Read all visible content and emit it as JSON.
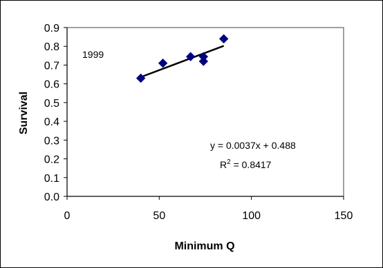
{
  "chart_data": {
    "type": "scatter",
    "xlabel": "Minimum Q",
    "ylabel": "Survival",
    "xlim": [
      0,
      150
    ],
    "ylim": [
      0.0,
      0.9
    ],
    "x_ticks": [
      "0",
      "50",
      "100",
      "150"
    ],
    "y_ticks": [
      "0.0",
      "0.1",
      "0.2",
      "0.3",
      "0.4",
      "0.5",
      "0.6",
      "0.7",
      "0.8",
      "0.9"
    ],
    "grid": false,
    "series": [
      {
        "marker": "diamond",
        "color": "#000080",
        "points": [
          {
            "x": 40,
            "y": 0.63
          },
          {
            "x": 52,
            "y": 0.71
          },
          {
            "x": 67,
            "y": 0.745
          },
          {
            "x": 74,
            "y": 0.745
          },
          {
            "x": 74,
            "y": 0.72
          },
          {
            "x": 85,
            "y": 0.84
          }
        ]
      }
    ],
    "trendline": {
      "color": "#000000",
      "slope": 0.0037,
      "intercept": 0.488,
      "x_range": [
        40,
        85
      ]
    },
    "annotations": {
      "year_label": "1999",
      "equation": "y = 0.0037x + 0.488",
      "r_squared_prefix": "R",
      "r_squared_exp": "2",
      "r_squared_value": " = 0.8417"
    }
  }
}
